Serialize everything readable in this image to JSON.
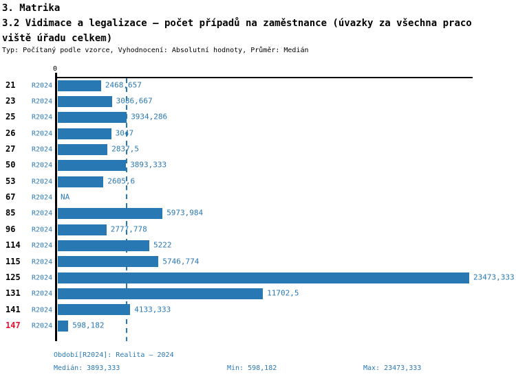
{
  "header": {
    "section": "3. Matrika",
    "title_line1": "3.2 Vidimace a legalizace – počet případů na zaměstnance (úvazky za všechna praco",
    "title_line2": "viště úřadu celkem)",
    "subtitle": "Typ: Počítaný podle vzorce, Vyhodnocení: Absolutní hodnoty, Průměr: Medián"
  },
  "chart_data": {
    "type": "bar",
    "orientation": "horizontal",
    "title": "3.2 Vidimace a legalizace – počet případů na zaměstnance (úvazky za všechna pracoviště úřadu celkem)",
    "xlabel": "",
    "ylabel": "",
    "xlim": [
      0,
      23700
    ],
    "grid": false,
    "axis": {
      "zero_label": "0"
    },
    "median_value": 3893.333,
    "min_value": 598.182,
    "max_value": 23473.333,
    "series_period": "R2024",
    "rows": [
      {
        "id": "21",
        "period": "R2024",
        "label": "2468,657",
        "value": 2468.657,
        "highlight": false
      },
      {
        "id": "23",
        "period": "R2024",
        "label": "3086,667",
        "value": 3086.667,
        "highlight": false
      },
      {
        "id": "25",
        "period": "R2024",
        "label": "3934,286",
        "value": 3934.286,
        "highlight": false
      },
      {
        "id": "26",
        "period": "R2024",
        "label": "3047",
        "value": 3047,
        "highlight": false
      },
      {
        "id": "27",
        "period": "R2024",
        "label": "2837,5",
        "value": 2837.5,
        "highlight": false
      },
      {
        "id": "50",
        "period": "R2024",
        "label": "3893,333",
        "value": 3893.333,
        "highlight": false
      },
      {
        "id": "53",
        "period": "R2024",
        "label": "2605,6",
        "value": 2605.6,
        "highlight": false
      },
      {
        "id": "67",
        "period": "R2024",
        "label": "NA",
        "value": null,
        "highlight": false
      },
      {
        "id": "85",
        "period": "R2024",
        "label": "5973,984",
        "value": 5973.984,
        "highlight": false
      },
      {
        "id": "96",
        "period": "R2024",
        "label": "2777,778",
        "value": 2777.778,
        "highlight": false
      },
      {
        "id": "114",
        "period": "R2024",
        "label": "5222",
        "value": 5222,
        "highlight": false
      },
      {
        "id": "115",
        "period": "R2024",
        "label": "5746,774",
        "value": 5746.774,
        "highlight": false
      },
      {
        "id": "125",
        "period": "R2024",
        "label": "23473,333",
        "value": 23473.333,
        "highlight": false
      },
      {
        "id": "131",
        "period": "R2024",
        "label": "11702,5",
        "value": 11702.5,
        "highlight": false
      },
      {
        "id": "141",
        "period": "R2024",
        "label": "4133,333",
        "value": 4133.333,
        "highlight": false
      },
      {
        "id": "147",
        "period": "R2024",
        "label": "598,182",
        "value": 598.182,
        "highlight": true
      }
    ],
    "colors": {
      "bar": "#2878b4",
      "text_blue": "#2878b4",
      "highlight_row": "#e8112d",
      "axis": "#000000"
    }
  },
  "footer": {
    "period_line": "Období[R2024]: Realita – 2024",
    "median": "Medián: 3893,333",
    "min": "Min: 598,182",
    "max": "Max: 23473,333"
  }
}
